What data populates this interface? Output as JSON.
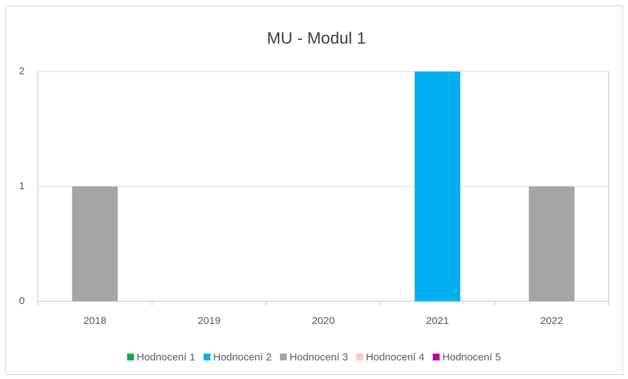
{
  "chart_data": {
    "type": "bar",
    "stacked": true,
    "title": "MU - Modul 1",
    "categories": [
      "2018",
      "2019",
      "2020",
      "2021",
      "2022"
    ],
    "series": [
      {
        "name": "Hodnocení 1",
        "color": "#00b050",
        "values": [
          0,
          0,
          0,
          0,
          0
        ]
      },
      {
        "name": "Hodnocení 2",
        "color": "#00b0f0",
        "values": [
          0,
          0,
          0,
          2,
          0
        ]
      },
      {
        "name": "Hodnocení 3",
        "color": "#a5a5a5",
        "values": [
          1,
          0,
          0,
          0,
          1
        ]
      },
      {
        "name": "Hodnocení 4",
        "color": "#ffc7c7",
        "values": [
          0,
          0,
          0,
          0,
          0
        ]
      },
      {
        "name": "Hodnocení 5",
        "color": "#c0009a",
        "values": [
          0,
          0,
          0,
          0,
          0
        ]
      }
    ],
    "ylim": [
      0,
      2
    ],
    "yticks": [
      0,
      1,
      2
    ],
    "grid": true,
    "legend": "bottom"
  }
}
